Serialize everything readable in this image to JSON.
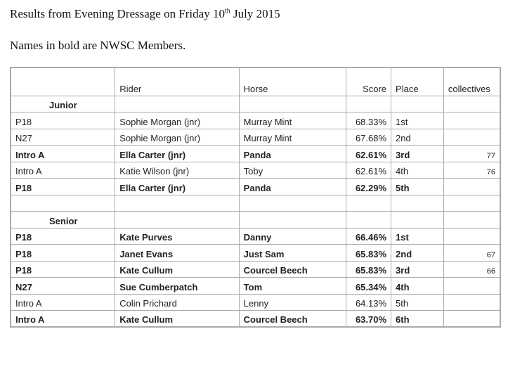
{
  "header": {
    "title_before": "Results from Evening Dressage on Friday 10",
    "title_sup": "th",
    "title_after": "July 2015",
    "note": "Names in bold are NWSC Members."
  },
  "table": {
    "columns": [
      "Rider",
      "Horse",
      "Score",
      "Place",
      "collectives"
    ],
    "sections": [
      {
        "label": "Junior",
        "rows": [
          {
            "class": "P18",
            "rider": "Sophie Morgan (jnr)",
            "horse": "Murray Mint",
            "score": "68.33%",
            "place": "1st",
            "bold": false
          },
          {
            "class": "N27",
            "rider": "Sophie Morgan (jnr)",
            "horse": "Murray Mint",
            "score": "67.68%",
            "place": "2nd",
            "bold": false
          },
          {
            "class": "Intro A",
            "rider": "Ella Carter (jnr)",
            "horse": "Panda",
            "score": "62.61%",
            "place": "3rd",
            "collective": "77",
            "bold": true
          },
          {
            "class": "Intro A",
            "rider": "Katie Wilson (jnr)",
            "horse": "Toby",
            "score": "62.61%",
            "place": "4th",
            "collective": "76",
            "bold": false
          },
          {
            "class": "P18",
            "rider": "Ella Carter (jnr)",
            "horse": "Panda",
            "score": "62.29%",
            "place": "5th",
            "bold": true
          }
        ]
      },
      {
        "label": "Senior",
        "rows": [
          {
            "class": "P18",
            "rider": "Kate Purves",
            "horse": "Danny",
            "score": "66.46%",
            "place": "1st",
            "bold": true
          },
          {
            "class": "P18",
            "rider": "Janet Evans",
            "horse": "Just Sam",
            "score": "65.83%",
            "place": "2nd",
            "collective": "67",
            "bold": true
          },
          {
            "class": "P18",
            "rider": "Kate Cullum",
            "horse": "Courcel Beech",
            "score": "65.83%",
            "place": "3rd",
            "collective": "66",
            "bold": true
          },
          {
            "class": "N27",
            "rider": "Sue Cumberpatch",
            "horse": "Tom",
            "score": "65.34%",
            "place": "4th",
            "bold": true
          },
          {
            "class": "Intro A",
            "rider": "Colin Prichard",
            "horse": "Lenny",
            "score": "64.13%",
            "place": "5th",
            "bold": false
          },
          {
            "class": "Intro A",
            "rider": "Kate Cullum",
            "horse": "Courcel Beech",
            "score": "63.70%",
            "place": "6th",
            "bold": true
          }
        ]
      }
    ]
  }
}
